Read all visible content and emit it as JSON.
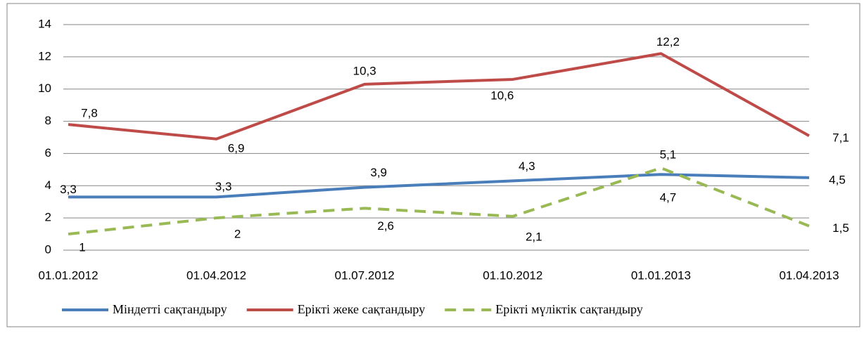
{
  "chart_data": {
    "type": "line",
    "x": [
      "01.01.2012",
      "01.04.2012",
      "01.07.2012",
      "01.10.2012",
      "01.01.2013",
      "01.04.2013"
    ],
    "series": [
      {
        "name": "Міндетті сақтандыру",
        "color": "#4a7ebb",
        "dash": false,
        "values": [
          3.3,
          3.3,
          3.9,
          4.3,
          4.7,
          4.5
        ],
        "value_labels": [
          "3,3",
          "3,3",
          "3,9",
          "4,3",
          "4,7",
          "4,5"
        ]
      },
      {
        "name": "Ерікті жеке сақтандыру",
        "color": "#be4b48",
        "dash": false,
        "values": [
          7.8,
          6.9,
          10.3,
          10.6,
          12.2,
          7.1
        ],
        "value_labels": [
          "7,8",
          "6,9",
          "10,3",
          "10,6",
          "12,2",
          "7,1"
        ]
      },
      {
        "name": "Ерікті мүліктік сақтандыру",
        "color": "#98b954",
        "dash": true,
        "values": [
          1,
          2,
          2.6,
          2.1,
          5.1,
          1.5
        ],
        "value_labels": [
          "1",
          "2",
          "2,6",
          "2,1",
          "5,1",
          "1,5"
        ]
      }
    ],
    "ylim": [
      0,
      14
    ],
    "yticks": [
      0,
      2,
      4,
      6,
      8,
      10,
      12,
      14
    ],
    "grid": true
  }
}
